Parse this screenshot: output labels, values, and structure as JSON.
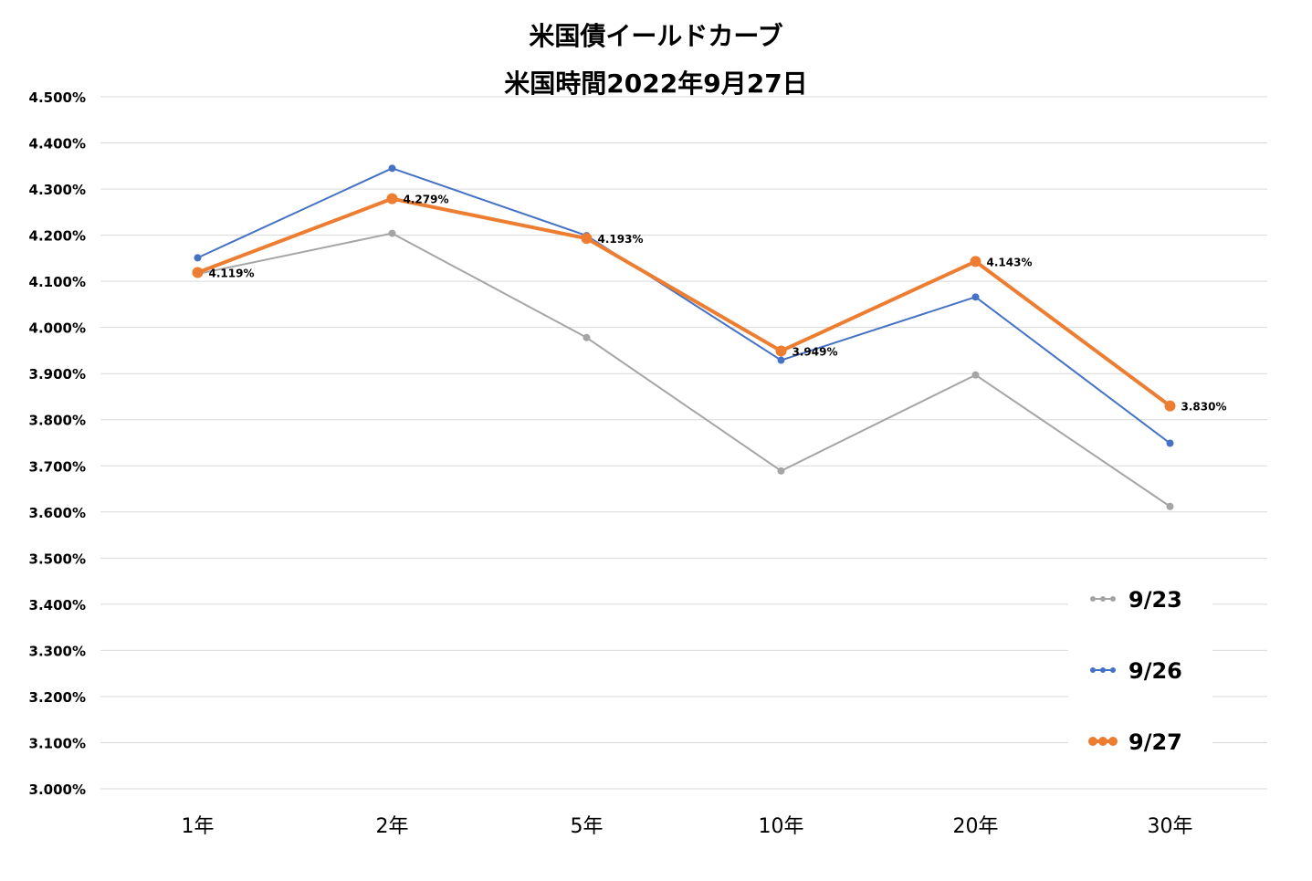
{
  "chart_data": {
    "type": "line",
    "title": "米国債イールドカーブ",
    "subtitle": "米国時間2022年9月27日",
    "categories": [
      "1年",
      "2年",
      "5年",
      "10年",
      "20年",
      "30年"
    ],
    "yticks": [
      "3.000%",
      "3.100%",
      "3.200%",
      "3.300%",
      "3.400%",
      "3.500%",
      "3.600%",
      "3.700%",
      "3.800%",
      "3.900%",
      "4.000%",
      "4.100%",
      "4.200%",
      "4.300%",
      "4.400%",
      "4.500%"
    ],
    "ylim": [
      3.0,
      4.5
    ],
    "grid": true,
    "legend_position": "bottom-right",
    "series": [
      {
        "name": "9/23",
        "color": "#a5a5a5",
        "values": [
          4.116,
          4.204,
          3.978,
          3.689,
          3.897,
          3.612
        ],
        "labels": []
      },
      {
        "name": "9/26",
        "color": "#4472c4",
        "values": [
          4.151,
          4.345,
          4.199,
          3.929,
          4.066,
          3.749
        ],
        "labels": []
      },
      {
        "name": "9/27",
        "color": "#ed7d31",
        "values": [
          4.119,
          4.279,
          4.193,
          3.949,
          4.143,
          3.83
        ],
        "labels": [
          "4.119%",
          "4.279%",
          "4.193%",
          "3.949%",
          "4.143%",
          "3.830%"
        ]
      }
    ]
  }
}
